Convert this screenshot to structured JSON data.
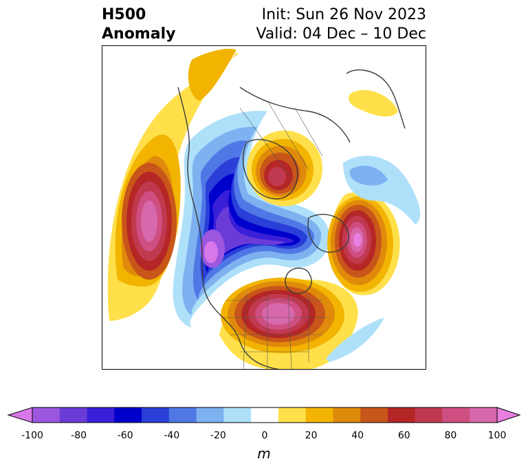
{
  "title": {
    "left_line1": "H500",
    "left_line2": "Anomaly",
    "init": "Init: Sun 26 Nov 2023",
    "valid": "Valid: 04 Dec – 10 Dec"
  },
  "colorbar": {
    "unit": "m",
    "ticks": [
      "-100",
      "-80",
      "-60",
      "-40",
      "-20",
      "0",
      "20",
      "40",
      "60",
      "80",
      "100"
    ],
    "colors": [
      "#d877e8",
      "#9c57e0",
      "#6b3bd8",
      "#3a1fd8",
      "#0000cc",
      "#2a3fd8",
      "#4f78e6",
      "#7db1f0",
      "#aee0fa",
      "#ffffff",
      "#ffe04a",
      "#f2b400",
      "#e08a0c",
      "#c8561a",
      "#b52626",
      "#c0394f",
      "#cf4f82",
      "#d868ac",
      "#e77ee0"
    ]
  },
  "map": {
    "projection": "polar stereographic",
    "region": "North Pacific / North America / North Atlantic"
  }
}
